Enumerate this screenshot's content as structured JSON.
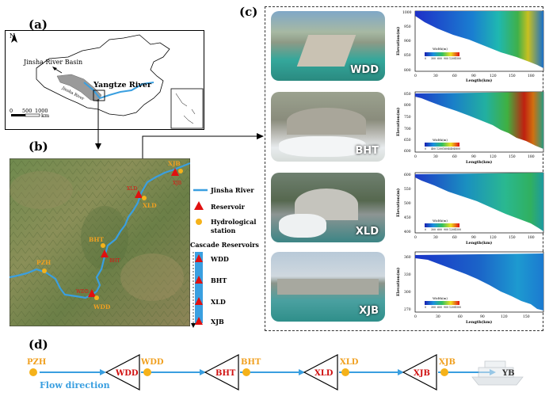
{
  "panels": {
    "a": {
      "label": "(a)",
      "north": "N",
      "basin_label": "Jinsha River Basin",
      "river_label": "Yangtze River",
      "small_river_label": "Jinsha River",
      "scale_ticks": [
        "0",
        "500",
        "1000"
      ],
      "scale_unit": "km"
    },
    "b": {
      "label": "(b)",
      "stations": [
        "XJB",
        "XLD",
        "BHT",
        "PZH",
        "WDD"
      ],
      "reservoir_marks": [
        "XJB",
        "XLD",
        "BHT",
        "WDD"
      ],
      "legend": {
        "river": "Jinsha River",
        "reservoir": "Reservoir",
        "station_line1": "Hydrological",
        "station_line2": "station",
        "cascade_title": "Cascade Reservoirs",
        "cascade": [
          "WDD",
          "BHT",
          "XLD",
          "XJB"
        ]
      }
    },
    "c": {
      "label": "(c)",
      "rows": [
        {
          "photo_label": "WDD",
          "ylabel": "Elevation(m)",
          "xlabel": "Length(km)",
          "yticks": [
            "1000",
            "950",
            "900",
            "850",
            "800"
          ],
          "xticks": [
            "0",
            "30",
            "60",
            "90",
            "120",
            "150",
            "180"
          ],
          "cbar_title": "Width(m)",
          "cbar_ticks": [
            "0",
            "300",
            "600",
            "900",
            "1200",
            "1500"
          ]
        },
        {
          "photo_label": "BHT",
          "ylabel": "Elevation(m)",
          "xlabel": "Length(km)",
          "yticks": [
            "850",
            "800",
            "750",
            "700",
            "650",
            "600"
          ],
          "xticks": [
            "0",
            "30",
            "60",
            "90",
            "120",
            "150",
            "180"
          ],
          "cbar_title": "Width(m)",
          "cbar_ticks": [
            "0",
            "400",
            "1200",
            "1600",
            "2400",
            "2800"
          ]
        },
        {
          "photo_label": "XLD",
          "ylabel": "Elevation(m)",
          "xlabel": "Length(km)",
          "yticks": [
            "600",
            "550",
            "500",
            "450",
            "400"
          ],
          "xticks": [
            "0",
            "30",
            "60",
            "90",
            "120",
            "150",
            "180"
          ],
          "cbar_title": "Width(m)",
          "cbar_ticks": [
            "0",
            "300",
            "600",
            "900",
            "1200",
            "1500"
          ]
        },
        {
          "photo_label": "XJB",
          "ylabel": "Elevation(m)",
          "xlabel": "Length(km)",
          "yticks": [
            "360",
            "330",
            "300",
            "270"
          ],
          "xticks": [
            "0",
            "30",
            "60",
            "90",
            "120",
            "150"
          ],
          "cbar_title": "Width(m)",
          "cbar_ticks": [
            "0",
            "300",
            "600",
            "900",
            "1200",
            "1500"
          ]
        }
      ]
    },
    "d": {
      "label": "(d)",
      "start_station": "PZH",
      "flow_label": "Flow direction",
      "reservoirs": [
        "WDD",
        "BHT",
        "XLD",
        "XJB"
      ],
      "stations": [
        "WDD",
        "BHT",
        "XLD",
        "XJB"
      ],
      "end_label": "YB"
    }
  },
  "colors": {
    "river": "#3a9fe0",
    "reservoir": "#e01010",
    "station": "#f5b21a",
    "station_text": "#f0a020",
    "reservoir_text": "#d01010"
  }
}
